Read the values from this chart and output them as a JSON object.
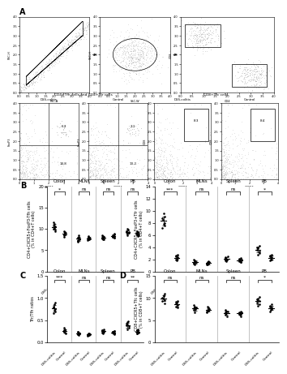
{
  "panel_B_left": {
    "ylabel": "CD4+CXCR5+FoxP3-Tfh cells\n(% in CD4+T cells)",
    "ylim": [
      0,
      20
    ],
    "yticks": [
      0,
      5,
      10,
      15,
      20
    ],
    "sections": [
      "Colon",
      "MLNs",
      "Spleen",
      "PB"
    ],
    "significance": [
      "*",
      "ns",
      "ns",
      "ns"
    ],
    "groups": {
      "Colon_DSS": [
        10.5,
        11.2,
        9.8,
        10.1,
        11.5,
        9.5,
        10.8,
        10.3
      ],
      "Colon_Ctrl": [
        8.2,
        9.1,
        8.5,
        9.3,
        8.8,
        9.0,
        8.6,
        9.5
      ],
      "MLNs_DSS": [
        7.5,
        8.2,
        7.0,
        7.8,
        8.5,
        7.2,
        8.0,
        7.3
      ],
      "MLNs_Ctrl": [
        7.8,
        8.0,
        7.3,
        8.1,
        7.6,
        8.3,
        7.9,
        7.5
      ],
      "Spleen_DSS": [
        8.0,
        7.5,
        8.5,
        7.8,
        8.2,
        7.9,
        8.3,
        7.6
      ],
      "Spleen_Ctrl": [
        8.5,
        8.0,
        8.8,
        8.2,
        7.9,
        8.6,
        8.1,
        8.4
      ],
      "PB_DSS": [
        9.5,
        8.8,
        9.2,
        10.0,
        8.5,
        9.8,
        9.0,
        9.3
      ],
      "PB_Ctrl": [
        8.5,
        9.0,
        8.8,
        9.2,
        8.3,
        9.5,
        8.7,
        9.1
      ]
    }
  },
  "panel_B_right": {
    "ylabel": "CD4+CXCR5+FoxP3+Tfr cells\n(% in CD4+T cells)",
    "ylim": [
      0,
      14
    ],
    "yticks": [
      0,
      2,
      4,
      6,
      8,
      10,
      12,
      14
    ],
    "sections": [
      "Colon",
      "MLNs",
      "Spleen",
      "PB"
    ],
    "significance": [
      "***",
      "ns",
      "ns",
      "*"
    ],
    "groups": {
      "Colon_DSS": [
        8.0,
        9.5,
        7.5,
        8.8,
        7.2,
        9.0,
        8.5,
        7.8
      ],
      "Colon_Ctrl": [
        2.5,
        2.0,
        1.8,
        2.2,
        2.8,
        2.3,
        1.9,
        2.6
      ],
      "MLNs_DSS": [
        1.5,
        1.8,
        1.3,
        1.6,
        1.2,
        1.9,
        1.4,
        1.7
      ],
      "MLNs_Ctrl": [
        1.3,
        1.5,
        1.2,
        1.4,
        1.6,
        1.1,
        1.7,
        1.3
      ],
      "Spleen_DSS": [
        2.0,
        2.5,
        1.8,
        2.2,
        1.9,
        2.3,
        2.1,
        1.7
      ],
      "Spleen_Ctrl": [
        1.8,
        2.0,
        1.5,
        1.9,
        2.2,
        1.6,
        2.1,
        1.7
      ],
      "PB_DSS": [
        3.5,
        4.0,
        3.0,
        3.8,
        2.8,
        4.2,
        3.3,
        3.9
      ],
      "PB_Ctrl": [
        2.0,
        2.5,
        1.8,
        2.3,
        2.8,
        1.9,
        2.6,
        2.2
      ]
    }
  },
  "panel_C": {
    "ylabel": "Tfr/Tfh ratios",
    "ylim": [
      0,
      1.5
    ],
    "yticks": [
      0.0,
      0.5,
      1.0,
      1.5
    ],
    "sections": [
      "Colon",
      "MLNs",
      "Spleen",
      "PB"
    ],
    "significance": [
      "***",
      "ns",
      "ns",
      "**"
    ],
    "groups": {
      "Colon_DSS": [
        0.75,
        0.85,
        0.7,
        0.8,
        0.65,
        0.9,
        0.78,
        0.72
      ],
      "Colon_Ctrl": [
        0.28,
        0.22,
        0.25,
        0.3,
        0.2,
        0.27,
        0.24,
        0.32
      ],
      "MLNs_DSS": [
        0.2,
        0.22,
        0.18,
        0.21,
        0.16,
        0.24,
        0.19,
        0.23
      ],
      "MLNs_Ctrl": [
        0.17,
        0.19,
        0.15,
        0.18,
        0.2,
        0.16,
        0.21,
        0.17
      ],
      "Spleen_DSS": [
        0.25,
        0.3,
        0.22,
        0.27,
        0.23,
        0.28,
        0.26,
        0.21
      ],
      "Spleen_Ctrl": [
        0.21,
        0.25,
        0.19,
        0.23,
        0.26,
        0.2,
        0.24,
        0.22
      ],
      "PB_DSS": [
        0.38,
        0.45,
        0.32,
        0.4,
        0.3,
        0.48,
        0.36,
        0.42
      ],
      "PB_Ctrl": [
        0.22,
        0.27,
        0.2,
        0.25,
        0.3,
        0.21,
        0.28,
        0.24
      ]
    }
  },
  "panel_D": {
    "ylabel": "CD8+CXCR5+Tfc cells\n(% in CD8+T cells)",
    "ylim": [
      0,
      15
    ],
    "yticks": [
      0,
      5,
      10,
      15
    ],
    "sections": [
      "Colon",
      "MLNs",
      "Spleen",
      "PB"
    ],
    "significance": [
      "ns",
      "ns",
      "ns",
      "*"
    ],
    "groups": {
      "Colon_DSS": [
        9.5,
        10.5,
        8.8,
        10.0,
        9.2,
        11.0,
        9.8,
        10.3
      ],
      "Colon_Ctrl": [
        8.0,
        9.0,
        8.5,
        7.8,
        9.2,
        8.3,
        8.8,
        9.1
      ],
      "MLNs_DSS": [
        7.5,
        8.0,
        7.2,
        7.8,
        6.8,
        8.3,
        7.6,
        7.9
      ],
      "MLNs_Ctrl": [
        7.0,
        7.5,
        6.8,
        7.3,
        8.0,
        7.2,
        7.8,
        7.1
      ],
      "Spleen_DSS": [
        6.5,
        7.0,
        6.2,
        6.8,
        5.8,
        7.3,
        6.6,
        7.0
      ],
      "Spleen_Ctrl": [
        6.2,
        6.8,
        5.9,
        6.5,
        7.0,
        6.3,
        6.7,
        6.4
      ],
      "PB_DSS": [
        9.0,
        9.8,
        8.5,
        9.5,
        8.2,
        10.2,
        9.3,
        9.7
      ],
      "PB_Ctrl": [
        7.5,
        8.2,
        7.0,
        7.8,
        8.5,
        7.3,
        8.0,
        7.6
      ]
    }
  }
}
